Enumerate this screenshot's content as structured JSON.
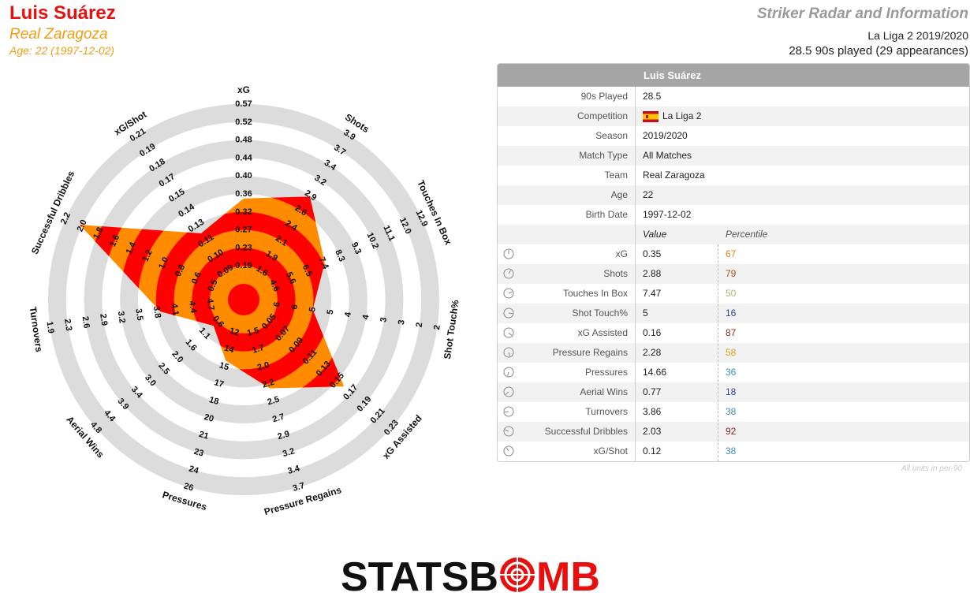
{
  "header": {
    "player_name": "Luis Suárez",
    "team": "Real Zaragoza",
    "age_line": "Age: 22 (1997-12-02)",
    "chart_title": "Striker Radar and Information",
    "season_line": "La Liga 2 2019/2020",
    "played_line": "28.5 90s played (29 appearances)"
  },
  "colors": {
    "red": "#ff0000",
    "orange": "#ff8c00",
    "ring_grey": "#dcdcdc",
    "name_red": "#e8100f",
    "team_orange": "#f39c12"
  },
  "chart_data": {
    "type": "radar",
    "metrics": [
      {
        "label": "xG",
        "ticks": [
          "0.19",
          "0.23",
          "0.27",
          "0.32",
          "0.36",
          "0.40",
          "0.44",
          "0.48",
          "0.52",
          "0.57"
        ],
        "value": 0.35
      },
      {
        "label": "Shots",
        "ticks": [
          "1.6",
          "1.9",
          "2.1",
          "2.4",
          "2.6",
          "2.9",
          "3.2",
          "3.4",
          "3.7",
          "3.9"
        ],
        "value": 2.88
      },
      {
        "label": "Touches In Box",
        "ticks": [
          "4.6",
          "5.6",
          "6.5",
          "7.4",
          "8.3",
          "9.3",
          "10.2",
          "11.1",
          "12.0",
          "12.9"
        ],
        "value": 7.47
      },
      {
        "label": "Shot Touch%",
        "ticks": [
          "6",
          "6",
          "5",
          "5",
          "4",
          "4",
          "3",
          "3",
          "2",
          "2"
        ],
        "value": 5
      },
      {
        "label": "xG Assisted",
        "ticks": [
          "0.05",
          "0.07",
          "0.09",
          "0.11",
          "0.13",
          "0.15",
          "0.17",
          "0.19",
          "0.21",
          "0.23"
        ],
        "value": 0.16
      },
      {
        "label": "Pressure Regains",
        "ticks": [
          "1.5",
          "1.7",
          "2.0",
          "2.2",
          "2.5",
          "2.7",
          "2.9",
          "3.2",
          "3.4",
          "3.7"
        ],
        "value": 2.28
      },
      {
        "label": "Pressures",
        "ticks": [
          "12",
          "14",
          "15",
          "17",
          "18",
          "20",
          "21",
          "23",
          "24",
          "26"
        ],
        "value": 14.66
      },
      {
        "label": "Aerial Wins",
        "ticks": [
          "0.6",
          "1.1",
          "1.6",
          "2.0",
          "2.5",
          "3.0",
          "3.4",
          "3.9",
          "4.4",
          "4.8"
        ],
        "value": 0.77
      },
      {
        "label": "Turnovers",
        "ticks": [
          "4.7",
          "4.4",
          "4.1",
          "3.8",
          "3.5",
          "3.2",
          "2.9",
          "2.6",
          "2.3",
          "1.9"
        ],
        "value": 3.86
      },
      {
        "label": "Successful Dribbles",
        "ticks": [
          "0.5",
          "0.6",
          "0.8",
          "1.0",
          "1.2",
          "1.4",
          "1.6",
          "1.8",
          "2.0",
          "2.2"
        ],
        "value": 2.03
      },
      {
        "label": "xG/Shot",
        "ticks": [
          "0.09",
          "0.10",
          "0.11",
          "0.13",
          "0.14",
          "0.15",
          "0.17",
          "0.18",
          "0.19",
          "0.21"
        ],
        "value": 0.12
      }
    ]
  },
  "info": {
    "header": "Luis Suárez",
    "details": [
      {
        "label": "90s Played",
        "value": "28.5"
      },
      {
        "label": "Competition",
        "value": "La Liga 2",
        "flag": true
      },
      {
        "label": "Season",
        "value": "2019/2020"
      },
      {
        "label": "Match Type",
        "value": "All Matches"
      },
      {
        "label": "Team",
        "value": "Real Zaragoza"
      },
      {
        "label": "Age",
        "value": "22"
      },
      {
        "label": "Birth Date",
        "value": "1997-12-02"
      }
    ],
    "value_header": "Value",
    "percentile_header": "Percentile",
    "stats": [
      {
        "label": "xG",
        "value": "0.35",
        "percentile": "67",
        "color": "#d88a17"
      },
      {
        "label": "Shots",
        "value": "2.88",
        "percentile": "79",
        "color": "#b34a22"
      },
      {
        "label": "Touches In Box",
        "value": "7.47",
        "percentile": "50",
        "color": "#b5b56a"
      },
      {
        "label": "Shot Touch%",
        "value": "5",
        "percentile": "16",
        "color": "#2a3f8c"
      },
      {
        "label": "xG Assisted",
        "value": "0.16",
        "percentile": "87",
        "color": "#a0281e"
      },
      {
        "label": "Pressure Regains",
        "value": "2.28",
        "percentile": "58",
        "color": "#e0a020"
      },
      {
        "label": "Pressures",
        "value": "14.66",
        "percentile": "36",
        "color": "#3a8fb7"
      },
      {
        "label": "Aerial Wins",
        "value": "0.77",
        "percentile": "18",
        "color": "#2a3f8c"
      },
      {
        "label": "Turnovers",
        "value": "3.86",
        "percentile": "38",
        "color": "#3a8fb7"
      },
      {
        "label": "Successful Dribbles",
        "value": "2.03",
        "percentile": "92",
        "color": "#9a1e1e"
      },
      {
        "label": "xG/Shot",
        "value": "0.12",
        "percentile": "38",
        "color": "#3a8fb7"
      }
    ],
    "units_note": "All units in per-90"
  },
  "logo": {
    "text_left": "STATSB",
    "text_right": "MB"
  }
}
